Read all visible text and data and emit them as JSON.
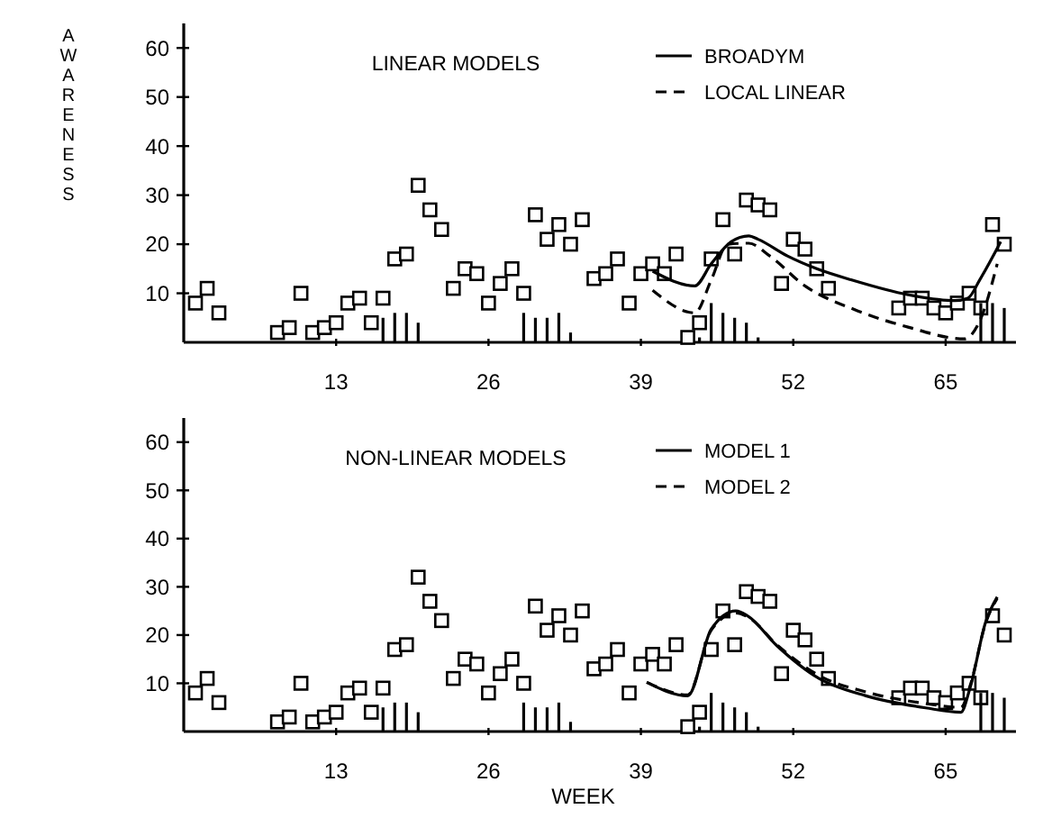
{
  "chart_data": [
    {
      "type": "scatter",
      "title": "LINEAR MODELS",
      "ylabel": "AWARENESS",
      "xlim": [
        0,
        71
      ],
      "xticks": [
        13,
        26,
        39,
        52,
        65
      ],
      "ylim": [
        0,
        65
      ],
      "yticks": [
        10,
        20,
        30,
        40,
        50,
        60
      ],
      "grid": false,
      "legend": "top right",
      "series": [
        {
          "marker": "square",
          "color": "#000000",
          "x": [
            1,
            2,
            3,
            8,
            9,
            10,
            11,
            12,
            13,
            14,
            15,
            16,
            17,
            18,
            19,
            20,
            21,
            22,
            23,
            24,
            25,
            26,
            27,
            28,
            29,
            30,
            31,
            32,
            33,
            34,
            35,
            36,
            37,
            38,
            39,
            40,
            41,
            42,
            43,
            44,
            45,
            46,
            47,
            48,
            49,
            50,
            51,
            52,
            53,
            54,
            55,
            61,
            62,
            63,
            64,
            65,
            66,
            67,
            68,
            69,
            70
          ],
          "values": [
            8,
            11,
            6,
            2,
            3,
            10,
            2,
            3,
            4,
            8,
            9,
            4,
            9,
            17,
            18,
            32,
            27,
            23,
            11,
            15,
            14,
            8,
            12,
            15,
            10,
            26,
            21,
            24,
            20,
            25,
            13,
            14,
            17,
            8,
            14,
            16,
            14,
            18,
            1,
            4,
            17,
            25,
            18,
            29,
            28,
            27,
            12,
            21,
            19,
            15,
            11,
            7,
            9,
            9,
            7,
            6,
            8,
            10,
            7,
            24,
            20
          ]
        },
        {
          "type": "bar",
          "color": "#000000",
          "x": [
            17,
            18,
            19,
            20,
            29,
            30,
            31,
            32,
            33,
            44,
            45,
            46,
            47,
            48,
            49,
            68,
            69,
            70
          ],
          "values": [
            5,
            6,
            6,
            4,
            6,
            5,
            5,
            6,
            2,
            1,
            8,
            6,
            5,
            4,
            1,
            8,
            8,
            7
          ]
        },
        {
          "type": "line",
          "name": "BROADYM",
          "color": "#000000",
          "line_style": "solid",
          "x": [
            40,
            43.6,
            45,
            46.7,
            48.2,
            49,
            51.5,
            54,
            57,
            61.8,
            65.8,
            66.9,
            67.9,
            69.7
          ],
          "values": [
            14.5,
            11.5,
            16,
            20.5,
            21.7,
            21,
            17.6,
            15,
            12.7,
            9.7,
            8.5,
            9,
            12.7,
            20.5
          ]
        },
        {
          "type": "line",
          "name": "LOCAL LINEAR",
          "color": "#000000",
          "line_style": "dashed",
          "x": [
            40,
            43.6,
            45,
            46.4,
            48.2,
            50,
            53,
            57.2,
            61.8,
            66.6,
            67.9,
            69.4
          ],
          "values": [
            10.6,
            6,
            12.7,
            20,
            20.2,
            17.6,
            11.5,
            6.7,
            3.1,
            0.7,
            4.3,
            16
          ]
        }
      ]
    },
    {
      "type": "scatter",
      "title": "NON-LINEAR MODELS",
      "xlabel": "WEEK",
      "xlim": [
        0,
        71
      ],
      "xticks": [
        13,
        26,
        39,
        52,
        65
      ],
      "ylim": [
        0,
        65
      ],
      "yticks": [
        10,
        20,
        30,
        40,
        50,
        60
      ],
      "grid": false,
      "legend": "top right",
      "series": [
        {
          "marker": "square",
          "color": "#000000",
          "x": [
            1,
            2,
            3,
            8,
            9,
            10,
            11,
            12,
            13,
            14,
            15,
            16,
            17,
            18,
            19,
            20,
            21,
            22,
            23,
            24,
            25,
            26,
            27,
            28,
            29,
            30,
            31,
            32,
            33,
            34,
            35,
            36,
            37,
            38,
            39,
            40,
            41,
            42,
            43,
            44,
            45,
            46,
            47,
            48,
            49,
            50,
            51,
            52,
            53,
            54,
            55,
            61,
            62,
            63,
            64,
            65,
            66,
            67,
            68,
            69,
            70
          ],
          "values": [
            8,
            11,
            6,
            2,
            3,
            10,
            2,
            3,
            4,
            8,
            9,
            4,
            9,
            17,
            18,
            32,
            27,
            23,
            11,
            15,
            14,
            8,
            12,
            15,
            10,
            26,
            21,
            24,
            20,
            25,
            13,
            14,
            17,
            8,
            14,
            16,
            14,
            18,
            1,
            4,
            17,
            25,
            18,
            29,
            28,
            27,
            12,
            21,
            19,
            15,
            11,
            7,
            9,
            9,
            7,
            6,
            8,
            10,
            7,
            24,
            20
          ]
        },
        {
          "type": "bar",
          "color": "#000000",
          "x": [
            17,
            18,
            19,
            20,
            29,
            30,
            31,
            32,
            33,
            44,
            45,
            46,
            47,
            48,
            49,
            68,
            69,
            70
          ],
          "values": [
            5,
            6,
            6,
            4,
            6,
            5,
            5,
            6,
            2,
            1,
            8,
            6,
            5,
            4,
            1,
            8,
            8,
            7
          ]
        },
        {
          "type": "line",
          "name": "MODEL 1",
          "color": "#000000",
          "line_style": "solid",
          "x": [
            39.5,
            43,
            45,
            47.1,
            48.1,
            50.6,
            54.2,
            58.2,
            63.3,
            66.3,
            67.1,
            68.4,
            69.4
          ],
          "values": [
            10.2,
            7.4,
            21.2,
            25,
            24,
            17.8,
            11,
            7.4,
            4.9,
            4,
            9.2,
            22.6,
            27.9
          ]
        },
        {
          "type": "line",
          "name": "MODEL 2",
          "color": "#000000",
          "line_style": "dashed",
          "x": [
            39.5,
            43,
            45,
            47.1,
            48.1,
            50.6,
            54.2,
            58.2,
            63.3,
            66.3,
            67.1,
            68.4,
            69.4
          ],
          "values": [
            10.2,
            7.6,
            21,
            24.6,
            23.8,
            18,
            11.6,
            8.2,
            5.8,
            5,
            9.6,
            22.4,
            27.6
          ]
        }
      ]
    }
  ]
}
